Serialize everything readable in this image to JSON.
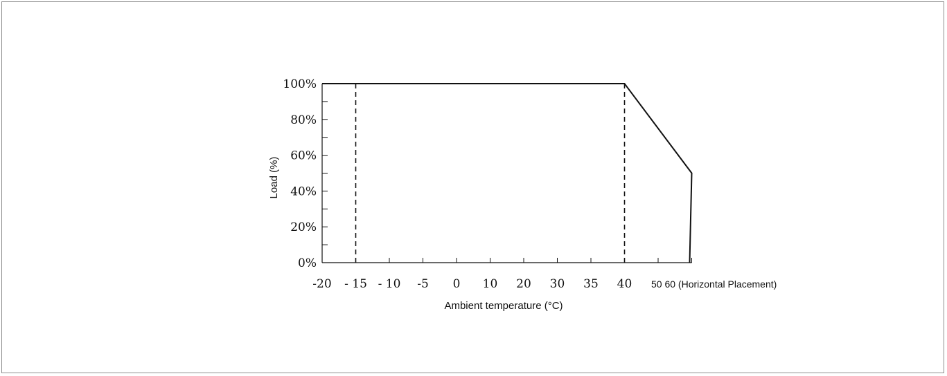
{
  "chart_data": {
    "type": "line",
    "xlabel": "Ambient temperature (°C)",
    "ylabel": "Load (%)",
    "x_tick_labels": [
      "-20",
      "- 15",
      "- 10",
      "-5",
      "0",
      "10",
      "20",
      "30",
      "35",
      "40"
    ],
    "x_tail_label": "50 60 (Horizontal Placement)",
    "y_tick_labels": [
      "0%",
      "20%",
      "40%",
      "60%",
      "80%",
      "100%"
    ],
    "x_categories": [
      "-20",
      "-15",
      "-10",
      "-5",
      "0",
      "10",
      "20",
      "30",
      "35",
      "40",
      "50",
      "60"
    ],
    "ylim": [
      0,
      100
    ],
    "series": [
      {
        "x": [
          "-20",
          "40",
          "60",
          "60"
        ],
        "y": [
          100,
          100,
          50,
          0
        ]
      }
    ],
    "reference_lines": [
      {
        "x": "-15",
        "style": "dashed"
      },
      {
        "x": "40",
        "style": "dashed"
      }
    ]
  }
}
